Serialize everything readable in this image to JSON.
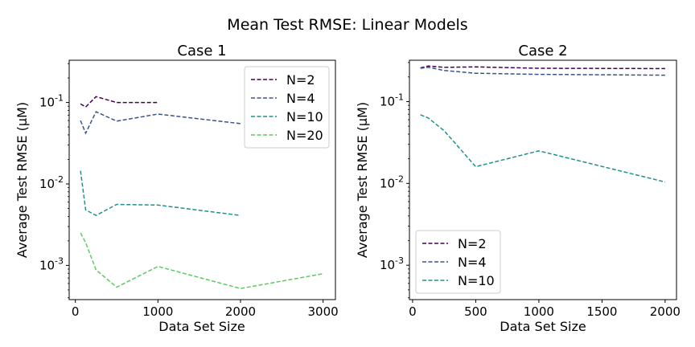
{
  "chart": {
    "title": "Mean Test RMSE: Linear Models"
  },
  "chart_data": [
    {
      "type": "line",
      "title": "Case 1",
      "xlabel": "Data Set Size",
      "ylabel": "Average Test RMSE (μM)",
      "yscale": "log",
      "xlim": [
        -75,
        3150
      ],
      "ylim": [
        0.00038,
        0.33
      ],
      "xticks": [
        0,
        1000,
        2000,
        3000
      ],
      "xtick_labels": [
        "0",
        "1000",
        "2000",
        "3000"
      ],
      "yticks": [
        0.001,
        0.01,
        0.1
      ],
      "ytick_labels": [
        "10^-3",
        "10^-2",
        "10^-1"
      ],
      "legend": "upper right",
      "series": [
        {
          "name": "N=2",
          "color": "#440154",
          "x": [
            62,
            125,
            250,
            500,
            1000
          ],
          "y": [
            0.096,
            0.088,
            0.118,
            0.1,
            0.1
          ]
        },
        {
          "name": "N=4",
          "color": "#3b528b",
          "x": [
            62,
            125,
            250,
            500,
            1000,
            2000
          ],
          "y": [
            0.06,
            0.042,
            0.077,
            0.059,
            0.072,
            0.055
          ]
        },
        {
          "name": "N=10",
          "color": "#21918c",
          "x": [
            62,
            125,
            250,
            500,
            1000,
            2000
          ],
          "y": [
            0.0145,
            0.0048,
            0.0041,
            0.0056,
            0.0055,
            0.0041
          ]
        },
        {
          "name": "N=20",
          "color": "#5ec962",
          "x": [
            62,
            125,
            250,
            500,
            1000,
            2000,
            3000
          ],
          "y": [
            0.0025,
            0.0019,
            0.00088,
            0.00054,
            0.00097,
            0.00052,
            0.00079
          ]
        }
      ]
    },
    {
      "type": "line",
      "title": "Case 2",
      "xlabel": "Data Set Size",
      "ylabel": "Average Test RMSE (μM)",
      "yscale": "log",
      "xlim": [
        -25,
        2090
      ],
      "ylim": [
        0.00038,
        0.32
      ],
      "xticks": [
        0,
        500,
        1000,
        1500,
        2000
      ],
      "xtick_labels": [
        "0",
        "500",
        "1000",
        "1500",
        "2000"
      ],
      "yticks": [
        0.001,
        0.01,
        0.1
      ],
      "ytick_labels": [
        "10^-3",
        "10^-2",
        "10^-1"
      ],
      "legend": "lower left",
      "series": [
        {
          "name": "N=2",
          "color": "#440154",
          "x": [
            62,
            125,
            250,
            500,
            1000,
            2000
          ],
          "y": [
            0.258,
            0.272,
            0.262,
            0.265,
            0.255,
            0.253
          ]
        },
        {
          "name": "N=4",
          "color": "#3b528b",
          "x": [
            62,
            125,
            250,
            500,
            1000,
            2000
          ],
          "y": [
            0.255,
            0.262,
            0.24,
            0.222,
            0.215,
            0.21
          ]
        },
        {
          "name": "N=10",
          "color": "#21918c",
          "x": [
            62,
            125,
            250,
            500,
            1000,
            2000
          ],
          "y": [
            0.069,
            0.063,
            0.044,
            0.016,
            0.025,
            0.0104
          ]
        }
      ]
    }
  ]
}
